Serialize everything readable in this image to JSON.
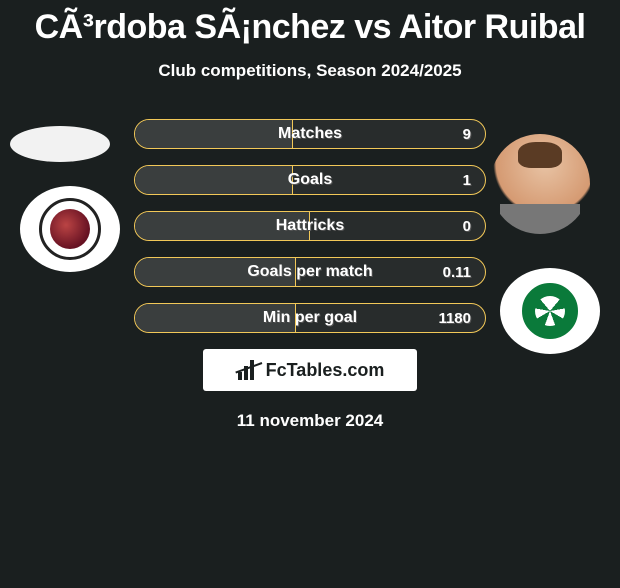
{
  "title": "CÃ³rdoba SÃ¡nchez vs Aitor Ruibal",
  "subtitle": "Club competitions, Season 2024/2025",
  "date": "11 november 2024",
  "logo_text": "FcTables.com",
  "colors": {
    "background": "#1a1f1f",
    "bar_border": "#f2c858",
    "bar_bg": "#282c2c",
    "bar_fill": "#3a3e3e",
    "text": "#ffffff"
  },
  "stats": [
    {
      "label": "Matches",
      "value": "9",
      "fill_pct": 45
    },
    {
      "label": "Goals",
      "value": "1",
      "fill_pct": 45
    },
    {
      "label": "Hattricks",
      "value": "0",
      "fill_pct": 50
    },
    {
      "label": "Goals per match",
      "value": "0.11",
      "fill_pct": 46
    },
    {
      "label": "Min per goal",
      "value": "1180",
      "fill_pct": 46
    }
  ]
}
